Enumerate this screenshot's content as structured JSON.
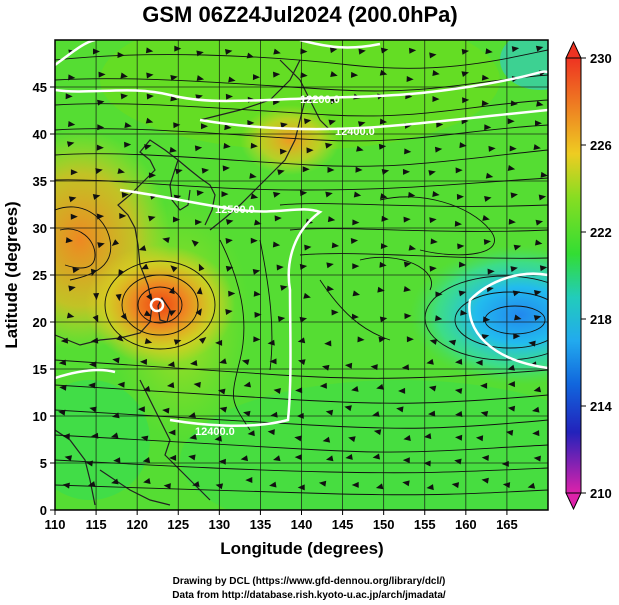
{
  "title": "GSM 06Z24Jul2024 (200.0hPa)",
  "x_axis": {
    "label": "Longitude (degrees)",
    "ticks": [
      "110",
      "115",
      "120",
      "125",
      "130",
      "135",
      "140",
      "145",
      "150",
      "155",
      "160",
      "165"
    ],
    "range": [
      110,
      170
    ]
  },
  "y_axis": {
    "label": "Latitude  (degrees)",
    "ticks": [
      "0",
      "5",
      "10",
      "15",
      "20",
      "25",
      "30",
      "35",
      "40",
      "45"
    ],
    "range": [
      0,
      50
    ]
  },
  "colorbar": {
    "ticks": [
      "230",
      "226",
      "222",
      "218",
      "214",
      "210"
    ],
    "min": 210,
    "max": 230,
    "colors": [
      "#dd22aa",
      "#3322cc",
      "#1166dd",
      "#22aaee",
      "#33ddaa",
      "#44dd44",
      "#66dd22",
      "#eedd22",
      "#ee9922",
      "#ee4422"
    ]
  },
  "contour_labels": [
    "12200.0",
    "12400.0",
    "12500.0",
    "12400.0"
  ],
  "credits": {
    "line1": "Drawing by DCL (https://www.gfd-dennou.org/library/dcl/)",
    "line2": "Data from http://database.rish.kyoto-u.ac.jp/arch/jmadata/"
  },
  "features": {
    "typhoon_center": [
      122.5,
      23.5
    ],
    "warm_regions": [
      "around typhoon near Taiwan",
      "South China",
      "north of Honshu"
    ],
    "cool_region": "subtropical low east of 160E near 23N"
  }
}
